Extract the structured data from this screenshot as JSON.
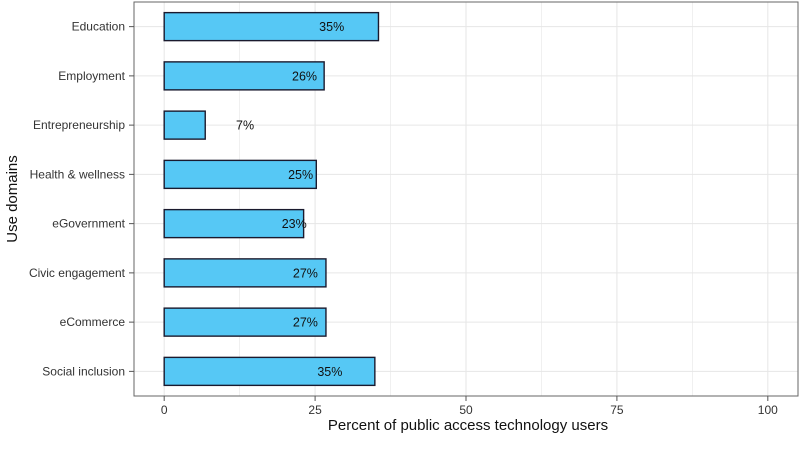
{
  "chart_data": {
    "type": "bar",
    "orientation": "horizontal",
    "categories": [
      "Education",
      "Employment",
      "Entrepreneurship",
      "Health & wellness",
      "eGovernment",
      "Civic engagement",
      "eCommerce",
      "Social inclusion"
    ],
    "values": [
      35.5,
      26.5,
      6.8,
      25.2,
      23.1,
      26.8,
      26.8,
      34.9
    ],
    "value_labels": [
      "35%",
      "26%",
      "7%",
      "25%",
      "23%",
      "27%",
      "27%",
      "35%"
    ],
    "xlabel": "Percent of public access technology users",
    "ylabel": "Use domains",
    "xlim": [
      -5,
      105
    ],
    "xticks": [
      0,
      25,
      50,
      75,
      100
    ],
    "xtick_labels": [
      "0",
      "25",
      "50",
      "75",
      "100"
    ],
    "grid": true,
    "bar_color": "#56c8f5",
    "bar_edge_color": "#1a1a2e",
    "grid_color": "#e6e6e6",
    "panel_border_color": "#666666"
  }
}
